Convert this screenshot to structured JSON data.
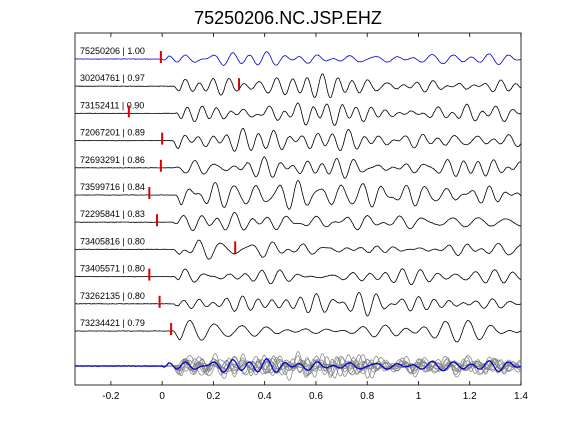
{
  "chart_data": {
    "type": "line",
    "title": "75250206.NC.JSP.EHZ",
    "xlabel": "",
    "ylabel": "",
    "xlim": [
      -0.34,
      1.4
    ],
    "x_ticks": [
      -0.2,
      0,
      0.2,
      0.4,
      0.6,
      0.8,
      1,
      1.2,
      1.4
    ],
    "x_tick_labels": [
      "-0.2",
      "0",
      "0.2",
      "0.4",
      "0.6",
      "0.8",
      "1",
      "1.2",
      "1.4"
    ],
    "grid": false,
    "colors": {
      "reference": "#0000cc",
      "trace": "#000000",
      "pick": "#dd0000",
      "stack": "#808080",
      "axis": "#000000"
    },
    "traces": [
      {
        "label": "75250206 | 1.00",
        "event_id": "75250206",
        "correlation": 1.0,
        "pick_time": -0.005,
        "reference": true
      },
      {
        "label": "30204761 | 0.97",
        "event_id": "30204761",
        "correlation": 0.97,
        "pick_time": 0.3
      },
      {
        "label": "73152411 | 0.90",
        "event_id": "73152411",
        "correlation": 0.9,
        "pick_time": -0.13
      },
      {
        "label": "72067201 | 0.89",
        "event_id": "72067201",
        "correlation": 0.89,
        "pick_time": 0.0
      },
      {
        "label": "72693291 | 0.86",
        "event_id": "72693291",
        "correlation": 0.86,
        "pick_time": -0.005
      },
      {
        "label": "73599716 | 0.84",
        "event_id": "73599716",
        "correlation": 0.84,
        "pick_time": -0.05
      },
      {
        "label": "72295841 | 0.83",
        "event_id": "72295841",
        "correlation": 0.83,
        "pick_time": -0.02
      },
      {
        "label": "73405816 | 0.80",
        "event_id": "73405816",
        "correlation": 0.8,
        "pick_time": 0.285
      },
      {
        "label": "73405571 | 0.80",
        "event_id": "73405571",
        "correlation": 0.8,
        "pick_time": -0.05
      },
      {
        "label": "73262135 | 0.80",
        "event_id": "73262135",
        "correlation": 0.8,
        "pick_time": -0.01
      },
      {
        "label": "73234421 | 0.79",
        "event_id": "73234421",
        "correlation": 0.79,
        "pick_time": 0.035
      }
    ],
    "stack": {
      "overlay_of_all_traces": true,
      "reference_highlighted": true
    }
  }
}
